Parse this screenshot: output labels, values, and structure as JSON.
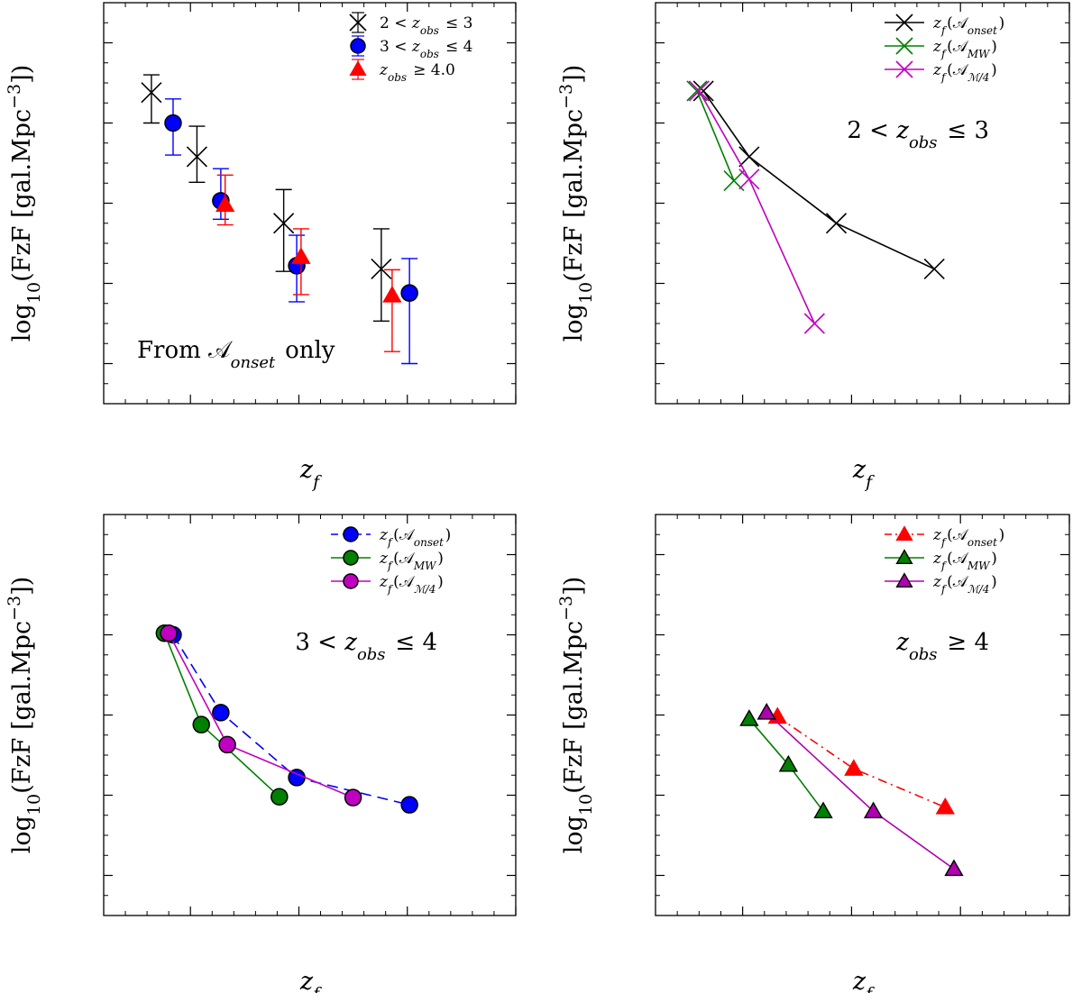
{
  "chart_data": [
    {
      "type": "scatter",
      "panel": "top-left",
      "xlabel": "z_f",
      "ylabel": "log10(FzF [gal.Mpc^-3])",
      "xlim": [
        1,
        20
      ],
      "ylim": [
        -5.5,
        -0.5
      ],
      "xticks": [
        5,
        10,
        15,
        20
      ],
      "yticks": [
        -1,
        -2,
        -3,
        -4,
        -5
      ],
      "annotation": "From 𝒜onset only",
      "annotation_position": "bottom-left",
      "legend_position": "top-right",
      "series": [
        {
          "name": "2 < zobs ≤ 3",
          "color": "#000000",
          "marker": "x",
          "line": "none",
          "x": [
            3.2,
            5.3,
            9.3,
            13.8
          ],
          "y": [
            -1.62,
            -2.42,
            -3.25,
            -3.82
          ],
          "err_lo": [
            0.38,
            0.32,
            0.6,
            0.65
          ],
          "err_hi": [
            0.22,
            0.38,
            0.42,
            0.5
          ]
        },
        {
          "name": "3 < zobs ≤ 4",
          "color": "#0000ff",
          "marker": "circle",
          "line": "none",
          "x": [
            4.2,
            6.4,
            9.9,
            15.1
          ],
          "y": [
            -2.0,
            -2.97,
            -3.78,
            -4.12
          ],
          "err_lo": [
            0.4,
            0.23,
            0.45,
            0.88
          ],
          "err_hi": [
            0.3,
            0.4,
            0.38,
            0.43
          ]
        },
        {
          "name": "zobs ≥ 4.0",
          "color": "#ff0000",
          "marker": "triangle",
          "line": "none",
          "x": [
            6.6,
            10.1,
            14.3
          ],
          "y": [
            -3.02,
            -3.67,
            -4.15
          ],
          "err_lo": [
            0.25,
            0.47,
            0.7
          ],
          "err_hi": [
            0.37,
            0.35,
            0.32
          ]
        }
      ]
    },
    {
      "type": "line",
      "panel": "top-right",
      "xlabel": "z_f",
      "ylabel": "log10(FzF [gal.Mpc^-3])",
      "xlim": [
        1,
        20
      ],
      "ylim": [
        -5.5,
        -0.5
      ],
      "xticks": [
        5,
        10,
        15,
        20
      ],
      "yticks": [
        -1,
        -2,
        -3,
        -4,
        -5
      ],
      "annotation": "2 < zobs ≤ 3",
      "annotation_position": "upper-right",
      "legend_position": "top-right",
      "series": [
        {
          "name": "zf(𝒜onset)",
          "color": "#000000",
          "marker": "x",
          "line": "solid",
          "x": [
            3.2,
            5.3,
            9.3,
            13.8
          ],
          "y": [
            -1.6,
            -2.42,
            -3.25,
            -3.82
          ]
        },
        {
          "name": "zf(𝒜MW)",
          "color": "#008000",
          "marker": "x",
          "line": "solid",
          "x": [
            2.9,
            4.6
          ],
          "y": [
            -1.6,
            -2.72
          ]
        },
        {
          "name": "zf(𝒜ℳ/4)",
          "color": "#c000c0",
          "marker": "x",
          "line": "solid",
          "x": [
            3.0,
            5.3,
            8.3
          ],
          "y": [
            -1.6,
            -2.7,
            -4.5
          ]
        }
      ]
    },
    {
      "type": "line",
      "panel": "bottom-left",
      "xlabel": "z_f",
      "ylabel": "log10(FzF [gal.Mpc^-3])",
      "xlim": [
        1,
        20
      ],
      "ylim": [
        -5.5,
        -0.5
      ],
      "xticks": [
        5,
        10,
        15,
        20
      ],
      "yticks": [
        -1,
        -2,
        -3,
        -4,
        -5
      ],
      "annotation": "3 < zobs ≤ 4",
      "annotation_position": "upper-right",
      "legend_position": "top-right",
      "series": [
        {
          "name": "zf(𝒜onset)",
          "color": "#0000ff",
          "marker": "circle",
          "line": "dashed",
          "x": [
            4.2,
            6.4,
            9.9,
            15.1
          ],
          "y": [
            -2.0,
            -2.97,
            -3.78,
            -4.12
          ]
        },
        {
          "name": "zf(𝒜MW)",
          "color": "#008000",
          "marker": "circle",
          "line": "solid",
          "x": [
            3.8,
            5.5,
            9.1
          ],
          "y": [
            -1.98,
            -3.12,
            -4.02
          ]
        },
        {
          "name": "zf(𝒜ℳ/4)",
          "color": "#c000c0",
          "marker": "circle",
          "line": "solid",
          "x": [
            4.0,
            6.7,
            12.5
          ],
          "y": [
            -1.98,
            -3.37,
            -4.03
          ]
        }
      ]
    },
    {
      "type": "line",
      "panel": "bottom-right",
      "xlabel": "z_f",
      "ylabel": "log10(FzF [gal.Mpc^-3])",
      "xlim": [
        1,
        20
      ],
      "ylim": [
        -5.5,
        -0.5
      ],
      "xticks": [
        5,
        10,
        15,
        20
      ],
      "yticks": [
        -1,
        -2,
        -3,
        -4,
        -5
      ],
      "annotation": "zobs ≥ 4",
      "annotation_position": "upper-right",
      "legend_position": "top-right",
      "series": [
        {
          "name": "zf(𝒜onset)",
          "color": "#ff0000",
          "marker": "triangle",
          "line": "dashdot",
          "x": [
            6.6,
            10.1,
            14.3
          ],
          "y": [
            -3.02,
            -3.67,
            -4.15
          ]
        },
        {
          "name": "zf(𝒜MW)",
          "color": "#008000",
          "marker": "triangle",
          "line": "solid",
          "x": [
            5.3,
            7.1,
            8.7
          ],
          "y": [
            -3.05,
            -3.62,
            -4.2
          ]
        },
        {
          "name": "zf(𝒜ℳ/4)",
          "color": "#b000b0",
          "marker": "triangle",
          "line": "solid",
          "x": [
            6.1,
            11.0,
            14.7
          ],
          "y": [
            -2.97,
            -4.2,
            -4.92
          ]
        }
      ]
    }
  ]
}
